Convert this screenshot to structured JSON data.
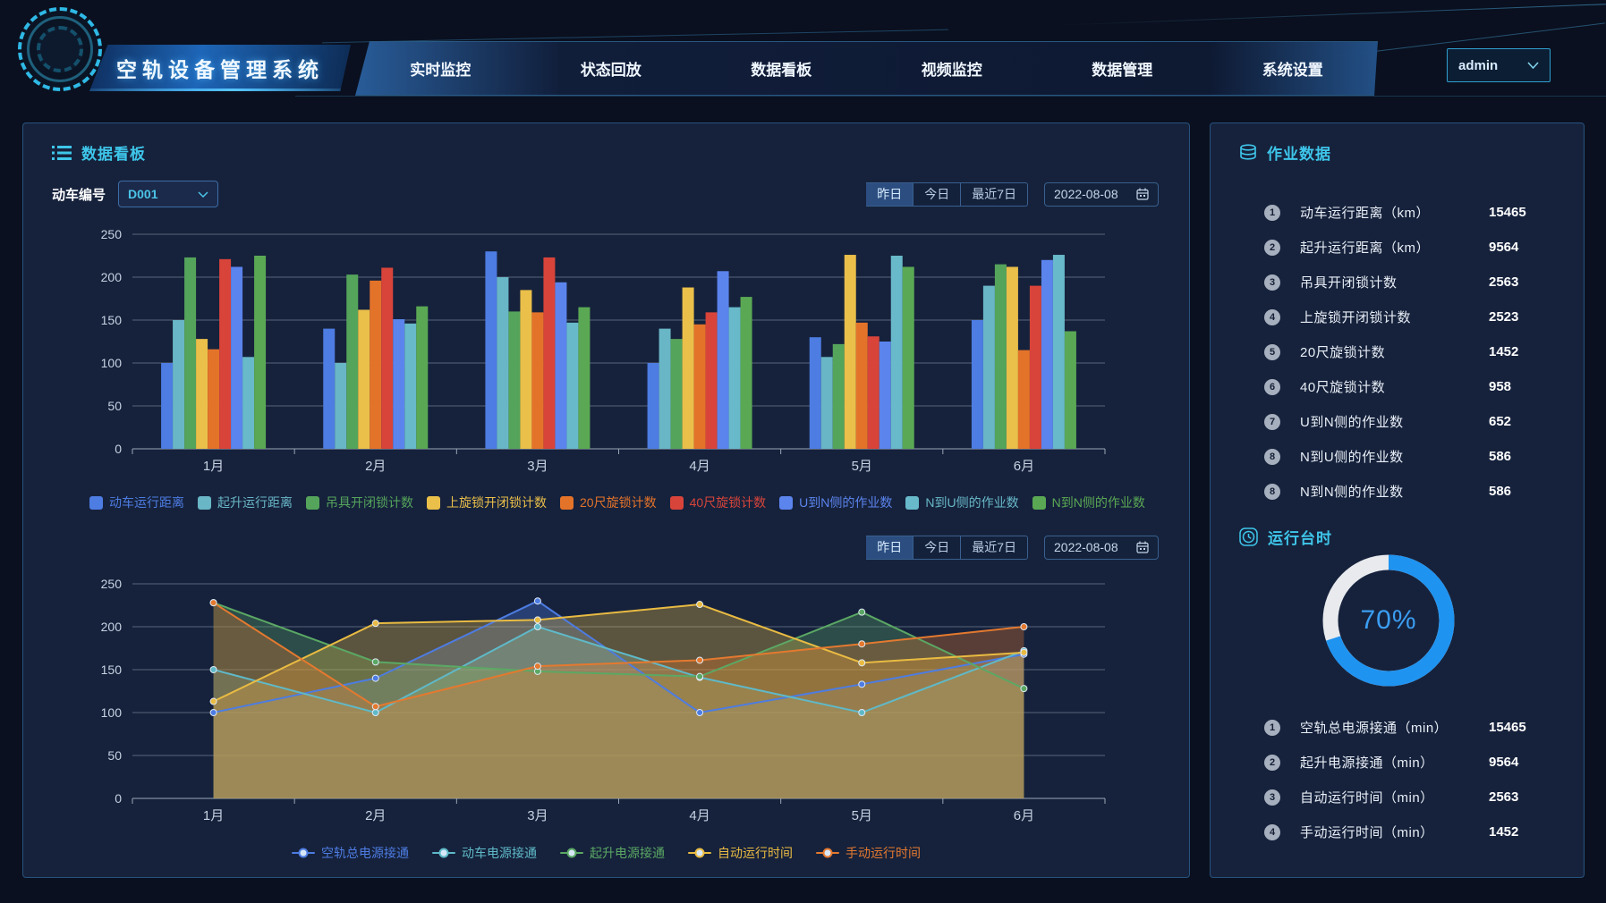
{
  "app": {
    "title": "空轨设备管理系统",
    "user": "admin"
  },
  "nav": {
    "items": [
      {
        "label": "实时监控"
      },
      {
        "label": "状态回放"
      },
      {
        "label": "数据看板"
      },
      {
        "label": "视频监控"
      },
      {
        "label": "数据管理"
      },
      {
        "label": "系统设置"
      }
    ]
  },
  "dashboard_panel": {
    "title": "数据看板",
    "train_select": {
      "label": "动车编号",
      "value": "D001"
    },
    "bar_filter": {
      "buttons": [
        {
          "label": "昨日",
          "active": true
        },
        {
          "label": "今日",
          "active": false
        },
        {
          "label": "最近7日",
          "active": false
        }
      ],
      "date": "2022-08-08"
    },
    "line_filter": {
      "buttons": [
        {
          "label": "昨日",
          "active": true
        },
        {
          "label": "今日",
          "active": false
        },
        {
          "label": "最近7日",
          "active": false
        }
      ],
      "date": "2022-08-08"
    }
  },
  "chart_data": [
    {
      "type": "bar",
      "title": "",
      "categories": [
        "1月",
        "2月",
        "3月",
        "4月",
        "5月",
        "6月"
      ],
      "series": [
        {
          "name": "动车运行距离",
          "color": "#4d7ce2",
          "values": [
            100,
            140,
            230,
            100,
            130,
            150
          ]
        },
        {
          "name": "起升运行距离",
          "color": "#69b6c6",
          "values": [
            150,
            100,
            200,
            140,
            107,
            190
          ]
        },
        {
          "name": "吊具开闭锁计数",
          "color": "#55a45b",
          "values": [
            223,
            203,
            160,
            128,
            122,
            215
          ]
        },
        {
          "name": "上旋锁开闭锁计数",
          "color": "#eabf4a",
          "values": [
            128,
            162,
            185,
            188,
            226,
            212
          ]
        },
        {
          "name": "20尺旋锁计数",
          "color": "#e4732a",
          "values": [
            116,
            196,
            159,
            145,
            147,
            115
          ]
        },
        {
          "name": "40尺旋锁计数",
          "color": "#d8443a",
          "values": [
            221,
            211,
            223,
            159,
            131,
            190
          ]
        },
        {
          "name": "U到N侧的作业数",
          "color": "#5b84ed",
          "values": [
            212,
            151,
            194,
            207,
            125,
            220
          ]
        },
        {
          "name": "N到U侧的作业数",
          "color": "#68b9c9",
          "values": [
            107,
            146,
            147,
            165,
            225,
            226
          ]
        },
        {
          "name": "N到N侧的作业数",
          "color": "#5aa854",
          "values": [
            225,
            166,
            165,
            177,
            212,
            137
          ]
        }
      ],
      "xlabel": "",
      "ylabel": "",
      "ylim": [
        0,
        250
      ],
      "ytick_step": 50,
      "grid": true,
      "legend_position": "bottom"
    },
    {
      "type": "line",
      "title": "",
      "categories": [
        "1月",
        "2月",
        "3月",
        "4月",
        "5月",
        "6月"
      ],
      "series": [
        {
          "name": "空轨总电源接通",
          "color": "#4d7ce2",
          "values": [
            100,
            140,
            230,
            100,
            133,
            168
          ]
        },
        {
          "name": "动车电源接通",
          "color": "#5fb9c8",
          "values": [
            150,
            100,
            200,
            141,
            100,
            172
          ]
        },
        {
          "name": "起升电源接通",
          "color": "#5ba864",
          "values": [
            228,
            159,
            148,
            142,
            217,
            128
          ]
        },
        {
          "name": "自动运行时间",
          "color": "#e9bb42",
          "values": [
            113,
            204,
            208,
            226,
            158,
            170
          ]
        },
        {
          "name": "手动运行时间",
          "color": "#e4792f",
          "values": [
            228,
            107,
            154,
            161,
            180,
            200
          ]
        }
      ],
      "xlabel": "",
      "ylabel": "",
      "ylim": [
        0,
        250
      ],
      "ytick_step": 50,
      "grid": true,
      "area_fill": true,
      "area_opacity": 0.33,
      "legend_position": "bottom"
    },
    {
      "type": "donut",
      "title": "运行台时",
      "percent": 70,
      "center_label": "70%",
      "color": "#1f93f0",
      "track_color": "#e8eaee"
    }
  ],
  "right_panel": {
    "operation": {
      "title": "作业数据",
      "items": [
        {
          "num": "1",
          "label": "动车运行距离（km）",
          "value": "15465"
        },
        {
          "num": "2",
          "label": "起升运行距离（km）",
          "value": "9564"
        },
        {
          "num": "3",
          "label": "吊具开闭锁计数",
          "value": "2563"
        },
        {
          "num": "4",
          "label": "上旋锁开闭锁计数",
          "value": "2523"
        },
        {
          "num": "5",
          "label": "20尺旋锁计数",
          "value": "1452"
        },
        {
          "num": "6",
          "label": "40尺旋锁计数",
          "value": "958"
        },
        {
          "num": "7",
          "label": "U到N侧的作业数",
          "value": "652"
        },
        {
          "num": "8",
          "label": "N到U侧的作业数",
          "value": "586"
        },
        {
          "num": "8",
          "label": "N到N侧的作业数",
          "value": "586"
        }
      ]
    },
    "runtime": {
      "title": "运行台时",
      "percent": "70%",
      "items": [
        {
          "num": "1",
          "label": "空轨总电源接通（min）",
          "value": "15465"
        },
        {
          "num": "2",
          "label": "起升电源接通（min）",
          "value": "9564"
        },
        {
          "num": "3",
          "label": "自动运行时间（min）",
          "value": "2563"
        },
        {
          "num": "4",
          "label": "手动运行时间（min）",
          "value": "1452"
        }
      ]
    }
  },
  "colors": {
    "accent_cyan": "#3ec6ea",
    "panel_bg": "#16223c",
    "panel_border": "#27527e",
    "donut_blue": "#1f93f0"
  }
}
